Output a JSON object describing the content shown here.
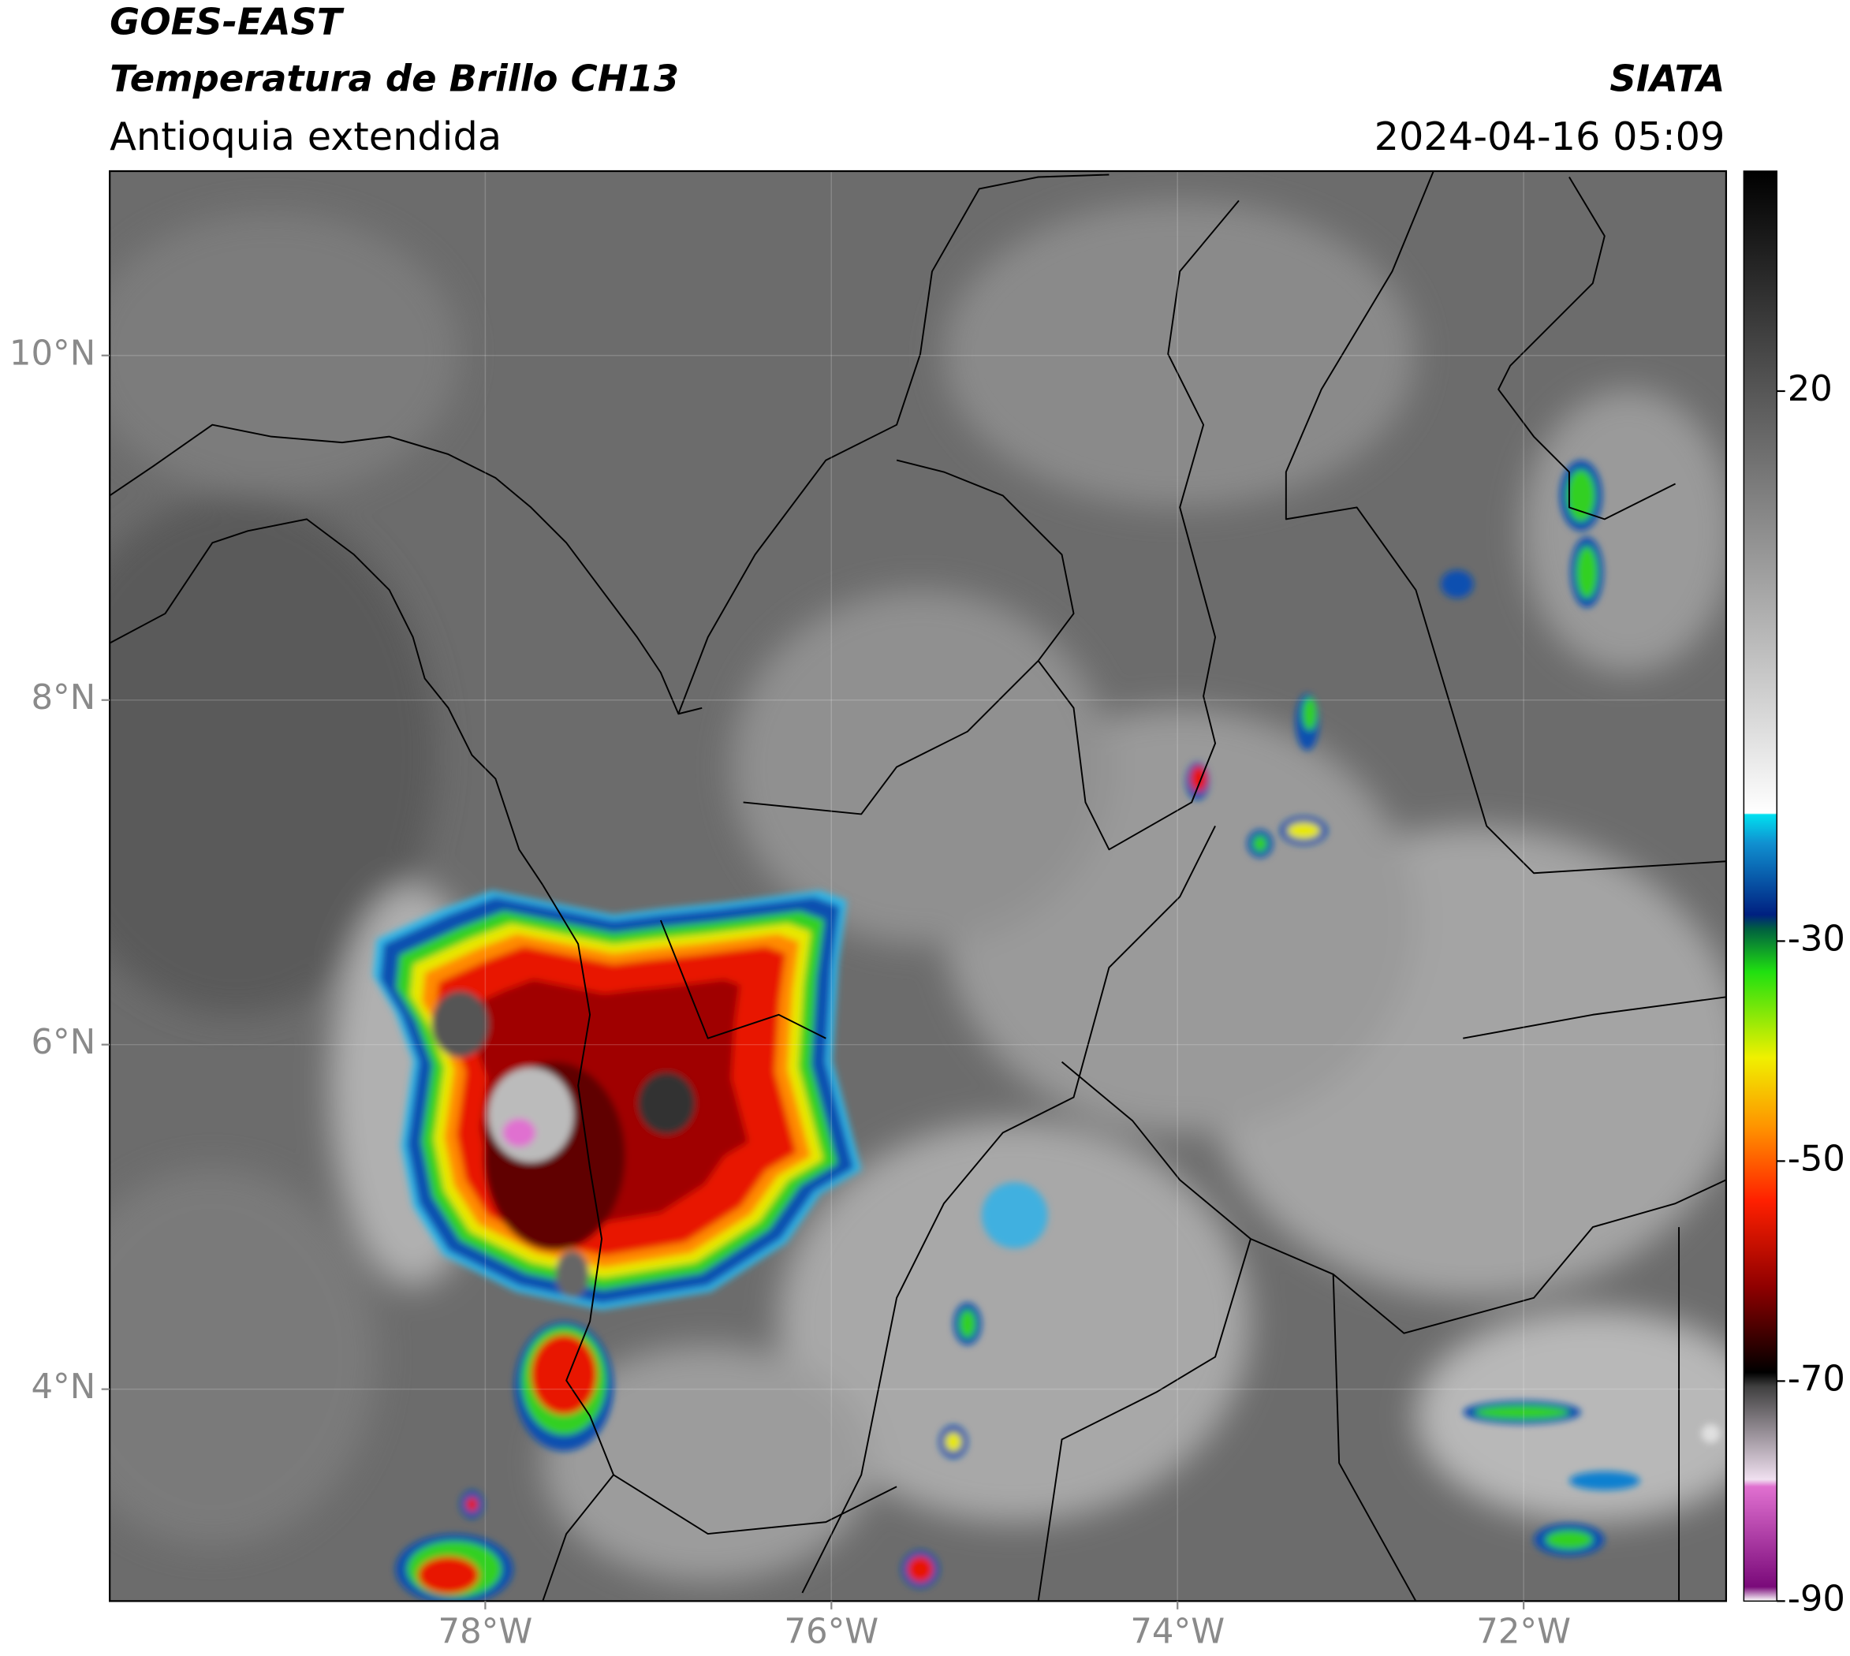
{
  "header": {
    "title": "GOES-EAST",
    "subtitle": "Temperatura de Brillo CH13",
    "region": "Antioquia extendida",
    "source": "SIATA",
    "timestamp": "2024-04-16 05:09"
  },
  "map": {
    "xlim": [
      -80.17,
      -70.83
    ],
    "ylim": [
      2.77,
      11.07
    ],
    "xticks": [
      {
        "value": -78,
        "label": "78°W"
      },
      {
        "value": -76,
        "label": "76°W"
      },
      {
        "value": -74,
        "label": "74°W"
      },
      {
        "value": -72,
        "label": "72°W"
      }
    ],
    "yticks": [
      {
        "value": 4,
        "label": "4°N"
      },
      {
        "value": 6,
        "label": "6°N"
      },
      {
        "value": 8,
        "label": "8°N"
      },
      {
        "value": 10,
        "label": "10°N"
      }
    ]
  },
  "colorbar": {
    "lim": [
      -90,
      40
    ],
    "ticks": [
      20,
      -30,
      -50,
      -70,
      -90
    ]
  }
}
